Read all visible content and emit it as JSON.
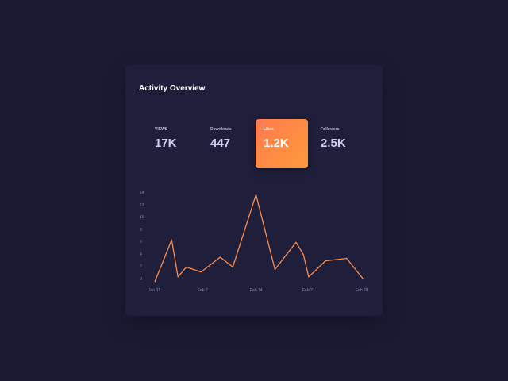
{
  "card": {
    "title": "Activity Overview"
  },
  "stats": [
    {
      "label": "VIEWS",
      "value": "17K",
      "active": false
    },
    {
      "label": "Downloads",
      "value": "447",
      "active": false
    },
    {
      "label": "Likes",
      "value": "1.2K",
      "active": true
    },
    {
      "label": "Followers",
      "value": "2.5K",
      "active": false
    }
  ],
  "colors": {
    "background": "#1a1a33",
    "card": "#1f1f3c",
    "accent_start": "#ff7a52",
    "accent_end": "#ff9a3a",
    "line": "#ff8c4a"
  },
  "chart_data": {
    "type": "line",
    "title": "",
    "xlabel": "",
    "ylabel": "",
    "ylim": [
      0,
      14
    ],
    "yticks": [
      0,
      2,
      4,
      6,
      8,
      10,
      12,
      14
    ],
    "xtick_labels": [
      "Jan 31",
      "Feb 7",
      "Feb 14",
      "Feb 21",
      "Feb 28"
    ],
    "grid": false,
    "legend": null,
    "series": [
      {
        "name": "Likes",
        "x": [
          0,
          0.8,
          1.1,
          1.5,
          2.2,
          3.1,
          3.7,
          4.8,
          5.7,
          6.7,
          7.05,
          7.3,
          8.1,
          9.1,
          9.9
        ],
        "values": [
          -0.4,
          6.4,
          0.4,
          2,
          1.2,
          3.6,
          2,
          13.7,
          1.6,
          6,
          4,
          0.4,
          3,
          3.4,
          0
        ]
      }
    ]
  }
}
